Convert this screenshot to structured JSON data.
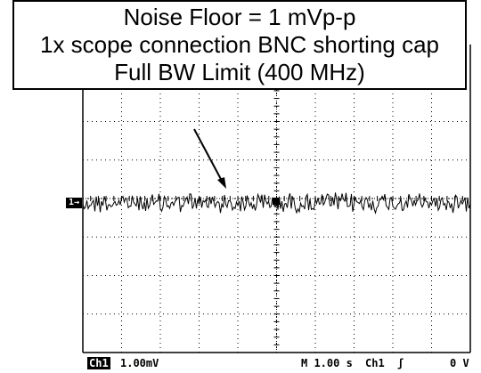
{
  "callout": {
    "lines": [
      "Noise Floor = 1 mVp-p",
      "1x scope connection BNC shorting cap",
      "Full BW Limit (400 MHz)"
    ]
  },
  "channel_marker": "1→",
  "status_bar": {
    "channel": "Ch1",
    "scale": "1.00mV",
    "timebase": "M 1.00 s",
    "trigger_source": "Ch1",
    "trigger_slope": "ʃ",
    "trigger_level": "0 V"
  },
  "colors": {
    "background": "#ffffff",
    "grid": "#000000",
    "trace": "#000000"
  }
}
